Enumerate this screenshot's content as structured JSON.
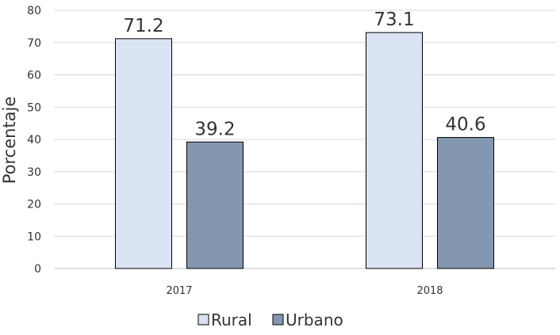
{
  "chart_data": {
    "type": "bar",
    "title": "",
    "xlabel": "",
    "ylabel": "Porcentaje",
    "ylim": [
      0,
      80
    ],
    "yticks": [
      0,
      10,
      20,
      30,
      40,
      50,
      60,
      70,
      80
    ],
    "categories": [
      "2017",
      "2018"
    ],
    "series": [
      {
        "name": "Rural",
        "values": [
          71.2,
          73.1
        ],
        "color": "#dae3f3"
      },
      {
        "name": "Urbano",
        "values": [
          39.2,
          40.6
        ],
        "color": "#8497b0"
      }
    ],
    "data_labels": true,
    "grid": true,
    "legend_position": "bottom"
  }
}
